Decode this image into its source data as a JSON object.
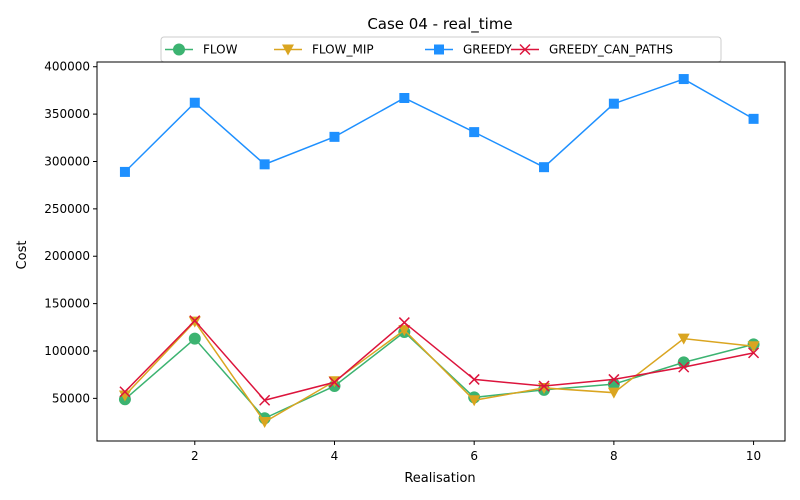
{
  "chart_data": {
    "type": "line",
    "title": "Case 04 - real_time",
    "xlabel": "Realisation",
    "ylabel": "Cost",
    "x": [
      1,
      2,
      3,
      4,
      5,
      6,
      7,
      8,
      9,
      10
    ],
    "xlim": [
      0.6,
      10.45
    ],
    "ylim": [
      5000,
      405000
    ],
    "xticks": [
      2,
      4,
      6,
      8,
      10
    ],
    "yticks": [
      50000,
      100000,
      150000,
      200000,
      250000,
      300000,
      350000,
      400000
    ],
    "grid": false,
    "legend_position": "top-center",
    "series": [
      {
        "name": "FLOW",
        "color": "#3cb371",
        "marker": "circle",
        "values": [
          49000,
          113000,
          29000,
          63000,
          120000,
          51000,
          59000,
          65000,
          88000,
          107000
        ]
      },
      {
        "name": "FLOW_MIP",
        "color": "#daa520",
        "marker": "triangle-down",
        "values": [
          53000,
          131000,
          25000,
          68000,
          122000,
          48000,
          61000,
          56000,
          113000,
          105000
        ]
      },
      {
        "name": "GREEDY",
        "color": "#1e90ff",
        "marker": "square",
        "values": [
          289000,
          362000,
          297000,
          326000,
          367000,
          331000,
          294000,
          361000,
          387000,
          345000
        ]
      },
      {
        "name": "GREEDY_CAN_PATHS",
        "color": "#dc143c",
        "marker": "x",
        "values": [
          57000,
          132000,
          48000,
          67000,
          130000,
          70000,
          63000,
          70000,
          83000,
          98000
        ]
      }
    ]
  }
}
